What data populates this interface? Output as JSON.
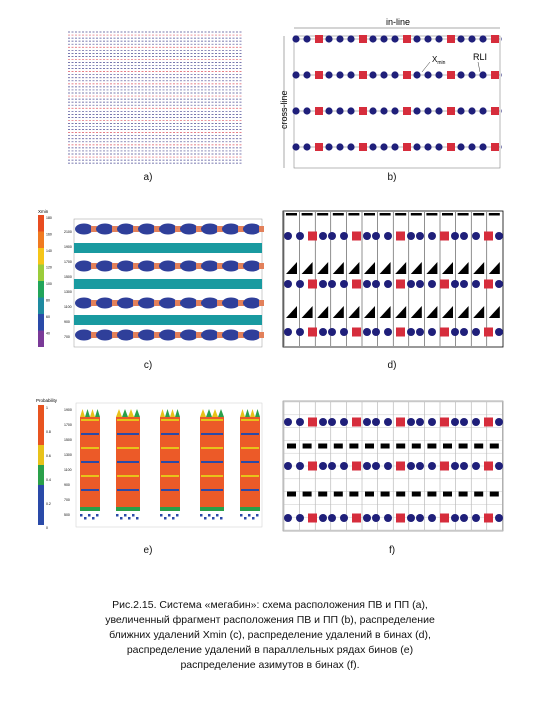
{
  "figure": {
    "panel_labels": {
      "a": "a)",
      "b": "b)",
      "c": "c)",
      "d": "d)",
      "e": "e)",
      "f": "f)"
    },
    "panel_b": {
      "inline_label": "in-line",
      "crossline_label": "cross-line",
      "xmin_label": "X",
      "xmin_sub": "min",
      "rli_label": "RLI"
    },
    "panel_c": {
      "legend_title": "Xmin",
      "legend_ticks": [
        "180",
        "160",
        "140",
        "120",
        "100",
        "80",
        "60",
        "40"
      ],
      "y_ticks": [
        "2100",
        "1900",
        "1700",
        "1500",
        "1300",
        "1100",
        "900",
        "700"
      ]
    },
    "panel_e": {
      "legend_title": "Probability",
      "legend_ticks": [
        "1",
        "0.8",
        "0.6",
        "0.4",
        "0.2",
        "0"
      ],
      "y_ticks": [
        "1900",
        "1700",
        "1500",
        "1300",
        "1100",
        "900",
        "700",
        "500"
      ]
    },
    "colors": {
      "source": "#1f1f7a",
      "receiver": "#d62d3c",
      "teal": "#199aa0",
      "orange": "#ec5a28",
      "black": "#000000"
    }
  },
  "caption": {
    "lines": [
      "Рис.2.15. Система «мегабин»: схема расположения ПВ и ПП (a),",
      "увеличенный фрагмент расположения ПВ и ПП (b), распределение",
      "ближних удалений Xmin (c), распределение удалений в бинах (d),",
      "распределение удалений в параллельных рядах бинов (e)",
      "распределение азимутов в бинах (f)."
    ]
  }
}
